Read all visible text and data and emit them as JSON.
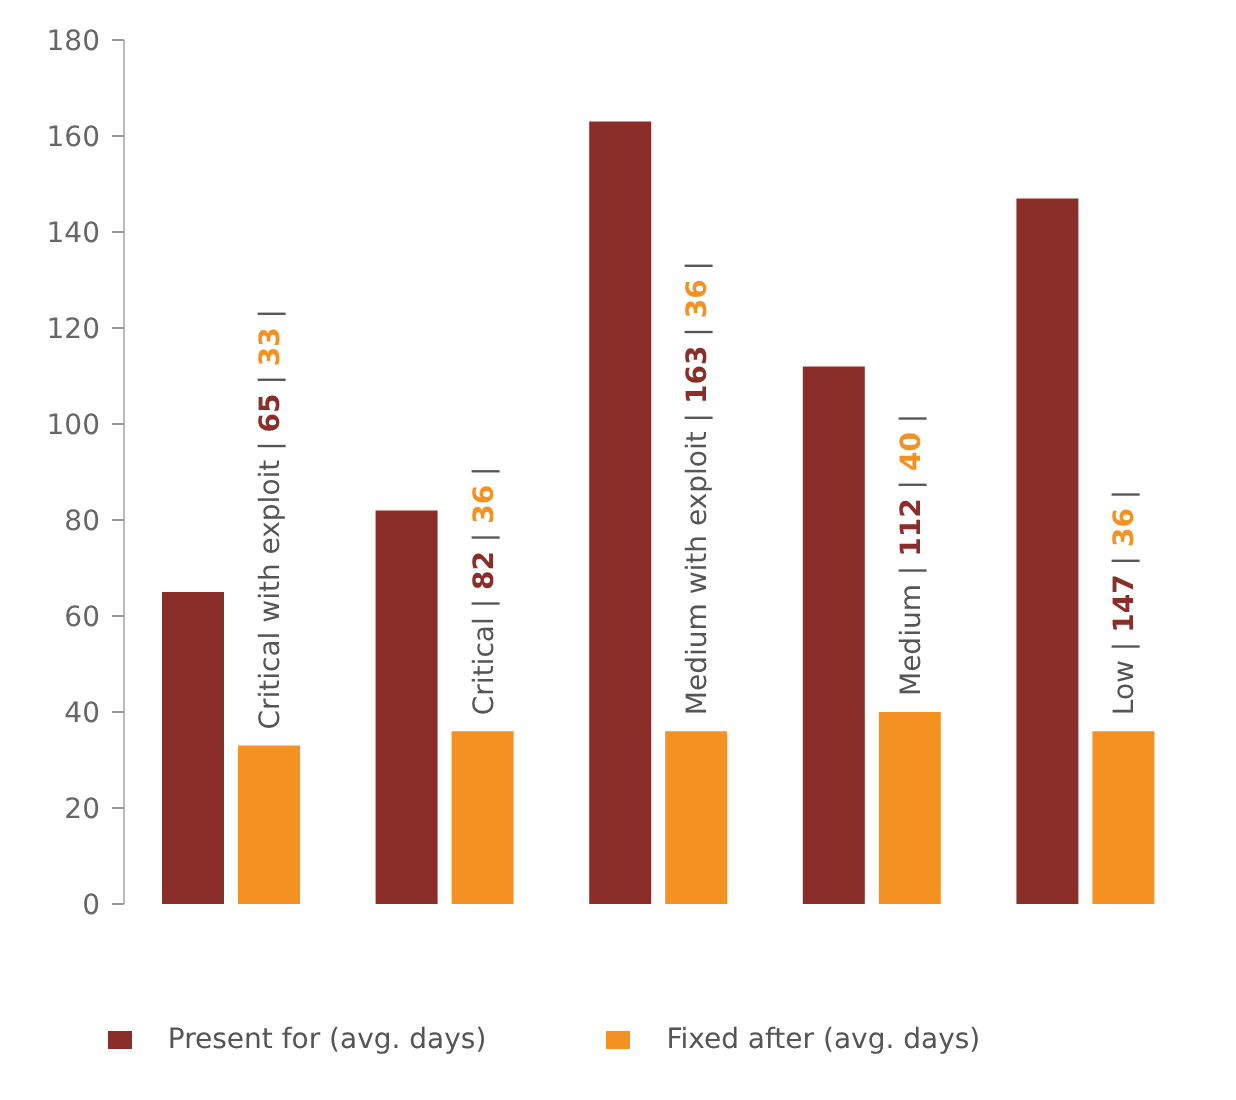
{
  "chart_data": {
    "type": "bar",
    "categories": [
      "Critical with exploit | 65 | 33 |",
      "Critical | 82 | 36 |",
      "Medium with exploit | 163 | 36 |",
      "Medium | 112 | 40 |",
      "Low | 147 | 36 |"
    ],
    "series": [
      {
        "name": "Present for (avg. days)",
        "color": "#8b2e2a",
        "values": [
          65,
          82,
          163,
          112,
          147
        ]
      },
      {
        "name": "Fixed after (avg. days)",
        "color": "#f39222",
        "values": [
          33,
          36,
          36,
          40,
          36
        ]
      }
    ],
    "ylim": [
      0,
      180
    ],
    "yticks": [
      0,
      20,
      40,
      60,
      80,
      100,
      120,
      140,
      160,
      180
    ],
    "grid": false,
    "legend": "bottom"
  }
}
